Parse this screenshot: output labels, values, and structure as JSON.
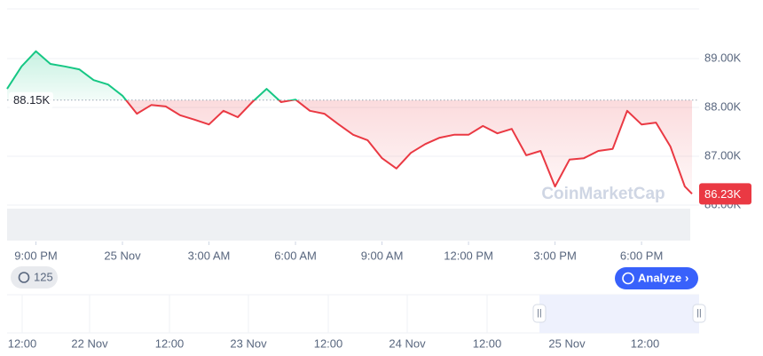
{
  "chart_data": {
    "type": "line",
    "x": [
      0,
      0.5,
      1,
      1.5,
      2,
      2.5,
      3,
      3.5,
      4,
      4.5,
      5,
      5.5,
      6,
      6.5,
      7,
      7.5,
      8,
      8.5,
      9,
      9.5,
      10,
      10.5,
      11,
      11.5,
      12,
      12.5,
      13,
      13.5,
      14,
      14.5,
      15,
      15.5,
      16,
      16.5,
      17,
      17.5,
      18,
      18.5,
      19,
      19.5,
      20,
      20.5,
      21,
      21.5,
      22,
      22.5,
      23,
      23.5,
      23.75
    ],
    "values": [
      88.38,
      88.84,
      89.15,
      88.89,
      88.84,
      88.78,
      88.56,
      88.47,
      88.24,
      87.87,
      88.05,
      88.02,
      87.84,
      87.75,
      87.65,
      87.93,
      87.8,
      88.11,
      88.38,
      88.11,
      88.16,
      87.93,
      87.87,
      87.65,
      87.44,
      87.33,
      86.96,
      86.75,
      87.07,
      87.25,
      87.38,
      87.44,
      87.44,
      87.62,
      87.47,
      87.56,
      87.02,
      87.11,
      86.38,
      86.93,
      86.96,
      87.11,
      87.15,
      87.93,
      87.65,
      87.69,
      87.2,
      86.38,
      86.23
    ],
    "up_color": "#16c784",
    "down_color": "#ea3943",
    "xlim": [
      0,
      23.75
    ],
    "xticks": [
      {
        "value": 1,
        "label": "9:00 PM"
      },
      {
        "value": 4,
        "label": "25 Nov"
      },
      {
        "value": 7,
        "label": "3:00 AM"
      },
      {
        "value": 10,
        "label": "6:00 AM"
      },
      {
        "value": 13,
        "label": "9:00 AM"
      },
      {
        "value": 16,
        "label": "12:00 PM"
      },
      {
        "value": 19,
        "label": "3:00 PM"
      },
      {
        "value": 22,
        "label": "6:00 PM"
      }
    ],
    "ylim": [
      86,
      90
    ],
    "yticks": [
      {
        "value": 86,
        "label": "86.00K"
      },
      {
        "value": 87,
        "label": "87.00K"
      },
      {
        "value": 88,
        "label": "88.00K"
      },
      {
        "value": 89,
        "label": "89.00K"
      }
    ],
    "grid": true,
    "baseline": {
      "value": 88.15,
      "label": "88.15K"
    },
    "last_price": {
      "value": 86.23,
      "label": "86.23K"
    },
    "watermark": "CoinMarketCap"
  },
  "controls": {
    "history_count": "125",
    "analyze": "Analyze"
  },
  "navigator_labels": [
    "12:00",
    "22 Nov",
    "12:00",
    "23 Nov",
    "12:00",
    "24 Nov",
    "12:00",
    "25 Nov",
    "12:00"
  ]
}
